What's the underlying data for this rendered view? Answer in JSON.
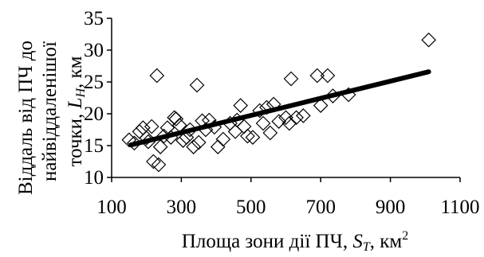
{
  "chart_data": {
    "type": "scatter",
    "xlabel": {
      "text": "Площа зони дії ПЧ, ",
      "symbol": "S",
      "subscript": "T",
      "unit": ", км",
      "superscript": "2"
    },
    "ylabel": {
      "line1": "Віддаль від ПЧ до",
      "line2": "найвіддаленішої",
      "line3_text": "точки, ",
      "line3_symbol": "L",
      "line3_subscript": "H",
      "line3_unit": ", км"
    },
    "xlim": [
      100,
      1100
    ],
    "ylim": [
      10,
      35
    ],
    "xticks": [
      "100",
      "300",
      "500",
      "700",
      "900",
      "1100"
    ],
    "yticks": [
      "10",
      "15",
      "20",
      "25",
      "30",
      "35"
    ],
    "grid": false,
    "marker": "diamond",
    "series": [
      {
        "points": [
          [
            150,
            15.9
          ],
          [
            165,
            15.4
          ],
          [
            180,
            17.2
          ],
          [
            190,
            17.8
          ],
          [
            200,
            16.2
          ],
          [
            205,
            15.6
          ],
          [
            215,
            18.0
          ],
          [
            220,
            12.5
          ],
          [
            230,
            26.0
          ],
          [
            235,
            12.0
          ],
          [
            240,
            14.8
          ],
          [
            250,
            16.5
          ],
          [
            260,
            17.8
          ],
          [
            270,
            16.3
          ],
          [
            280,
            19.4
          ],
          [
            285,
            19.2
          ],
          [
            295,
            18.2
          ],
          [
            305,
            15.8
          ],
          [
            315,
            16.3
          ],
          [
            325,
            17.5
          ],
          [
            335,
            14.8
          ],
          [
            345,
            24.5
          ],
          [
            350,
            15.5
          ],
          [
            360,
            18.9
          ],
          [
            370,
            17.5
          ],
          [
            380,
            19.0
          ],
          [
            395,
            17.9
          ],
          [
            405,
            14.8
          ],
          [
            420,
            16.0
          ],
          [
            440,
            18.5
          ],
          [
            455,
            17.2
          ],
          [
            460,
            19.0
          ],
          [
            470,
            21.3
          ],
          [
            480,
            18.0
          ],
          [
            490,
            16.5
          ],
          [
            505,
            16.3
          ],
          [
            525,
            20.5
          ],
          [
            535,
            18.5
          ],
          [
            545,
            21.0
          ],
          [
            555,
            17.0
          ],
          [
            565,
            21.5
          ],
          [
            580,
            18.8
          ],
          [
            600,
            19.4
          ],
          [
            610,
            18.5
          ],
          [
            615,
            25.5
          ],
          [
            630,
            19.4
          ],
          [
            650,
            19.7
          ],
          [
            690,
            26.0
          ],
          [
            700,
            21.3
          ],
          [
            720,
            26.0
          ],
          [
            735,
            22.8
          ],
          [
            780,
            23.0
          ],
          [
            1010,
            31.6
          ]
        ]
      }
    ],
    "trendline": {
      "x": [
        155,
        1010
      ],
      "y": [
        15.1,
        26.6
      ]
    }
  }
}
